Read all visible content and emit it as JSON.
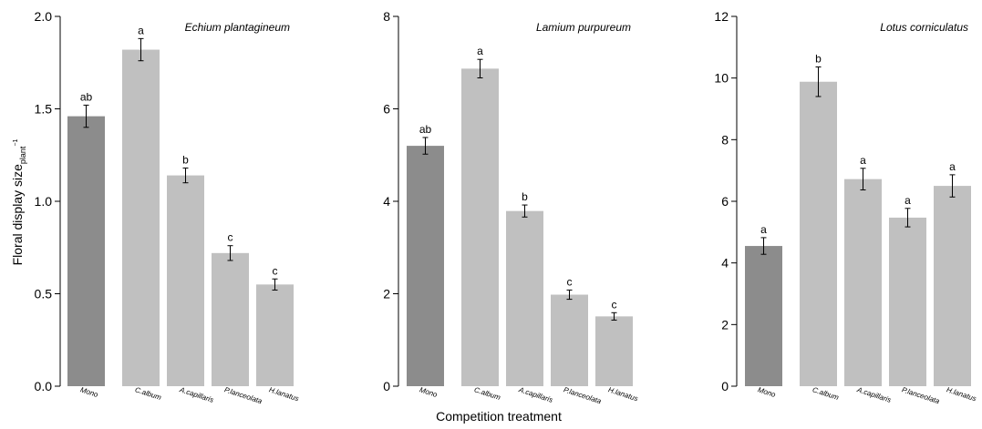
{
  "figure": {
    "ylabel_main": "Floral display size",
    "ylabel_sub": "plant",
    "ylabel_sup": "−1",
    "xlabel": "Competition treatment"
  },
  "colors": {
    "mono": "#8c8c8c",
    "comp": "#c0c0c0",
    "axis": "#000000",
    "error": "#000000"
  },
  "chart_data": [
    {
      "type": "bar",
      "title": "Echium plantagineum",
      "categories": [
        "Mono",
        "C.album",
        "A.capillaris",
        "P.lanceolata",
        "H.lanatus"
      ],
      "values": [
        1.46,
        1.82,
        1.14,
        0.72,
        0.55
      ],
      "errors": [
        0.06,
        0.06,
        0.04,
        0.04,
        0.03
      ],
      "significance": [
        "ab",
        "a",
        "b",
        "c",
        "c"
      ],
      "ylim": [
        0,
        2.0
      ],
      "yticks": [
        0,
        0.5,
        1.0,
        1.5,
        2.0
      ],
      "ytick_labels": [
        "0.0",
        "0.5",
        "1.0",
        "1.5",
        "2.0"
      ]
    },
    {
      "type": "bar",
      "title": "Lamium purpureum",
      "categories": [
        "Mono",
        "C.album",
        "A.capillaris",
        "P.lanceolata",
        "H.lanatus"
      ],
      "values": [
        5.2,
        6.87,
        3.79,
        1.98,
        1.51
      ],
      "errors": [
        0.18,
        0.2,
        0.13,
        0.1,
        0.08
      ],
      "significance": [
        "ab",
        "a",
        "b",
        "c",
        "c"
      ],
      "ylim": [
        0,
        8
      ],
      "yticks": [
        0,
        2,
        4,
        6,
        8
      ],
      "ytick_labels": [
        "0",
        "2",
        "4",
        "6",
        "8"
      ]
    },
    {
      "type": "bar",
      "title": "Lotus corniculatus",
      "categories": [
        "Mono",
        "C.album",
        "A.capillaris",
        "P.lanceolata",
        "H.lanatus"
      ],
      "values": [
        4.55,
        9.88,
        6.72,
        5.47,
        6.5
      ],
      "errors": [
        0.27,
        0.48,
        0.35,
        0.3,
        0.36
      ],
      "significance": [
        "a",
        "b",
        "a",
        "a",
        "a"
      ],
      "ylim": [
        0,
        12
      ],
      "yticks": [
        0,
        2,
        4,
        6,
        8,
        10,
        12
      ],
      "ytick_labels": [
        "0",
        "2",
        "4",
        "6",
        "8",
        "10",
        "12"
      ]
    }
  ]
}
